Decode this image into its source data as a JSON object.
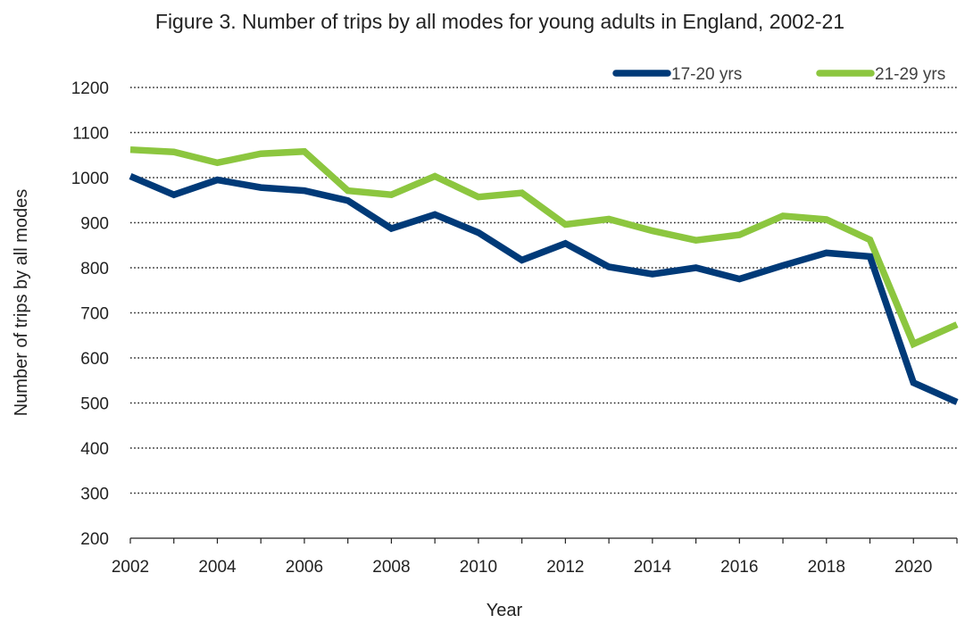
{
  "chart_data": {
    "type": "line",
    "title": "Figure 3. Number of trips by all modes for young adults in England, 2002-21",
    "xlabel": "Year",
    "ylabel": "Number of trips by all  modes",
    "x": [
      2002,
      2003,
      2004,
      2005,
      2006,
      2007,
      2008,
      2009,
      2010,
      2011,
      2012,
      2013,
      2014,
      2015,
      2016,
      2017,
      2018,
      2019,
      2020,
      2021
    ],
    "x_tick_labels": [
      "2002",
      "2004",
      "2006",
      "2008",
      "2010",
      "2012",
      "2014",
      "2016",
      "2018",
      "2020"
    ],
    "y_tick_labels": [
      "200",
      "300",
      "400",
      "500",
      "600",
      "700",
      "800",
      "900",
      "1000",
      "1100",
      "1200"
    ],
    "ylim": [
      200,
      1200
    ],
    "xlim": [
      2002,
      2021
    ],
    "grid": "horizontal-dotted",
    "legend_position": "top-right",
    "series": [
      {
        "name": "17-20 yrs",
        "color": "#003a78",
        "values": [
          1003,
          962,
          995,
          978,
          971,
          949,
          887,
          918,
          878,
          817,
          854,
          802,
          786,
          800,
          775,
          805,
          833,
          825,
          545,
          502
        ]
      },
      {
        "name": "21-29 yrs",
        "color": "#8cc63f",
        "values": [
          1062,
          1057,
          1033,
          1053,
          1058,
          971,
          962,
          1003,
          957,
          966,
          896,
          908,
          882,
          861,
          873,
          915,
          907,
          862,
          631,
          674
        ]
      }
    ]
  }
}
